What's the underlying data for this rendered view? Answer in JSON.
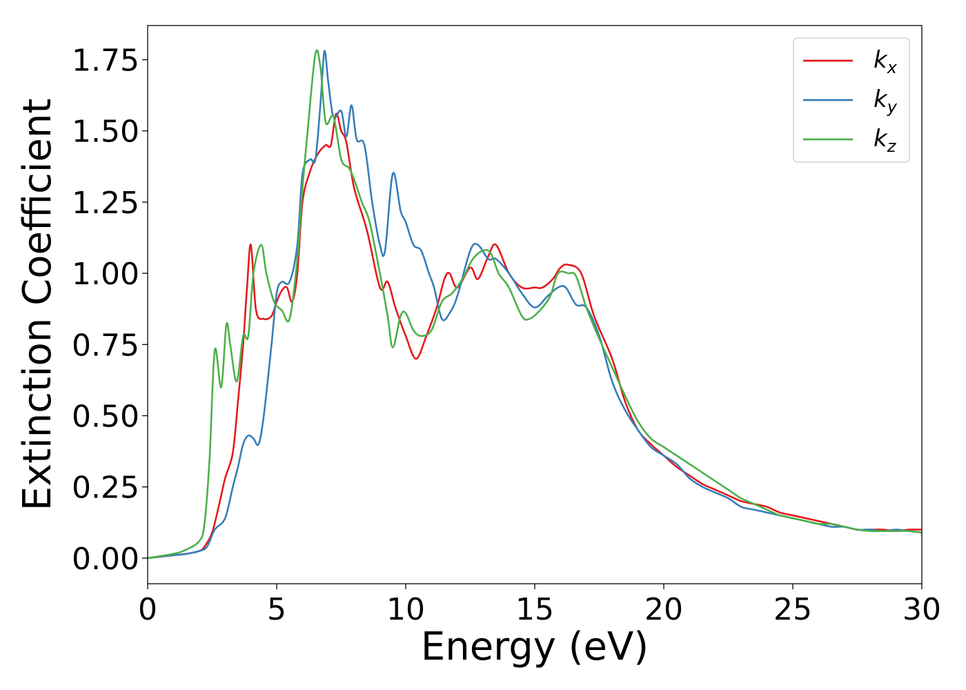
{
  "chart_data": {
    "type": "line",
    "title": "",
    "xlabel": "Energy (eV)",
    "ylabel": "Extinction Coefficient",
    "xlim": [
      0,
      30
    ],
    "ylim": [
      -0.09,
      1.87
    ],
    "xticks": [
      0,
      5,
      10,
      15,
      20,
      25,
      30
    ],
    "yticks": [
      0.0,
      0.25,
      0.5,
      0.75,
      1.0,
      1.25,
      1.5,
      1.75
    ],
    "xtick_labels": [
      "0",
      "5",
      "10",
      "15",
      "20",
      "25",
      "30"
    ],
    "ytick_labels": [
      "0.00",
      "0.25",
      "0.50",
      "0.75",
      "1.00",
      "1.25",
      "1.50",
      "1.75"
    ],
    "grid": false,
    "legend_position": "top-right",
    "series": [
      {
        "name": "k",
        "subscript": "x",
        "color": "#e41a1c",
        "x": [
          0,
          1,
          1.5,
          2,
          2.2,
          2.5,
          2.8,
          3,
          3.3,
          3.5,
          3.7,
          3.85,
          4,
          4.2,
          4.5,
          4.8,
          5,
          5.2,
          5.4,
          5.6,
          5.8,
          6,
          6.3,
          6.6,
          6.9,
          7.1,
          7.3,
          7.5,
          7.7,
          8,
          8.5,
          9,
          9.3,
          9.6,
          10,
          10.4,
          10.8,
          11.2,
          11.5,
          11.7,
          12,
          12.5,
          12.8,
          13.2,
          13.5,
          14,
          14.5,
          15,
          15.3,
          15.7,
          16,
          16.3,
          16.8,
          17.3,
          18,
          18.5,
          19,
          19.5,
          20,
          20.5,
          21,
          21.5,
          22,
          22.5,
          23,
          23.5,
          24,
          24.5,
          25,
          25.5,
          26,
          26.5,
          27,
          27.5,
          28,
          28.5,
          29,
          29.5,
          30
        ],
        "y": [
          0.0,
          0.01,
          0.015,
          0.025,
          0.04,
          0.09,
          0.2,
          0.28,
          0.37,
          0.55,
          0.75,
          0.95,
          1.1,
          0.87,
          0.84,
          0.85,
          0.9,
          0.94,
          0.95,
          0.9,
          1.0,
          1.25,
          1.36,
          1.42,
          1.45,
          1.45,
          1.56,
          1.5,
          1.46,
          1.3,
          1.15,
          0.95,
          0.97,
          0.88,
          0.78,
          0.7,
          0.78,
          0.88,
          0.98,
          1.0,
          0.95,
          1.02,
          0.98,
          1.06,
          1.1,
          1.0,
          0.95,
          0.95,
          0.95,
          0.98,
          1.02,
          1.03,
          1.0,
          0.85,
          0.7,
          0.55,
          0.45,
          0.4,
          0.36,
          0.32,
          0.29,
          0.26,
          0.24,
          0.22,
          0.2,
          0.19,
          0.18,
          0.16,
          0.15,
          0.14,
          0.13,
          0.12,
          0.11,
          0.1,
          0.1,
          0.1,
          0.095,
          0.1,
          0.1
        ]
      },
      {
        "name": "k",
        "subscript": "y",
        "color": "#377eb8",
        "x": [
          0,
          1,
          1.5,
          2,
          2.3,
          2.6,
          3,
          3.3,
          3.5,
          3.7,
          3.9,
          4.1,
          4.3,
          4.5,
          4.8,
          5,
          5.2,
          5.5,
          5.8,
          6,
          6.3,
          6.5,
          6.7,
          6.85,
          7,
          7.2,
          7.5,
          7.7,
          7.9,
          8.1,
          8.4,
          8.7,
          9,
          9.2,
          9.5,
          9.8,
          10,
          10.3,
          10.6,
          10.9,
          11.1,
          11.4,
          11.7,
          12,
          12.5,
          12.8,
          13.2,
          13.5,
          14,
          14.5,
          15,
          15.5,
          15.9,
          16.2,
          16.6,
          17,
          17.5,
          18,
          18.5,
          19,
          19.5,
          20,
          20.5,
          21,
          21.5,
          22,
          22.5,
          23,
          23.5,
          24,
          24.5,
          25,
          25.5,
          26,
          26.5,
          27,
          27.5,
          28,
          28.5,
          29,
          29.5,
          30
        ],
        "y": [
          0.0,
          0.01,
          0.015,
          0.025,
          0.04,
          0.1,
          0.14,
          0.25,
          0.32,
          0.4,
          0.43,
          0.42,
          0.4,
          0.5,
          0.75,
          0.93,
          0.97,
          0.97,
          1.1,
          1.35,
          1.4,
          1.4,
          1.6,
          1.78,
          1.67,
          1.55,
          1.57,
          1.48,
          1.59,
          1.47,
          1.45,
          1.25,
          1.1,
          1.08,
          1.35,
          1.22,
          1.18,
          1.1,
          1.08,
          1.0,
          0.95,
          0.84,
          0.86,
          0.92,
          1.08,
          1.1,
          1.05,
          1.05,
          1.0,
          0.93,
          0.88,
          0.92,
          0.95,
          0.95,
          0.89,
          0.88,
          0.78,
          0.62,
          0.52,
          0.45,
          0.39,
          0.36,
          0.33,
          0.28,
          0.25,
          0.23,
          0.21,
          0.18,
          0.17,
          0.16,
          0.15,
          0.14,
          0.13,
          0.12,
          0.11,
          0.11,
          0.1,
          0.1,
          0.095,
          0.1,
          0.095,
          0.09
        ]
      },
      {
        "name": "k",
        "subscript": "z",
        "color": "#4daf4a",
        "x": [
          0,
          1,
          1.5,
          2,
          2.2,
          2.4,
          2.6,
          2.85,
          3.05,
          3.2,
          3.45,
          3.7,
          3.9,
          4.1,
          4.4,
          4.6,
          4.9,
          5.2,
          5.5,
          5.8,
          6,
          6.2,
          6.5,
          6.7,
          6.9,
          7.2,
          7.5,
          7.8,
          8,
          8.3,
          8.6,
          9,
          9.3,
          9.5,
          9.8,
          10,
          10.3,
          10.6,
          11,
          11.4,
          11.8,
          12.2,
          12.6,
          13,
          13.3,
          13.6,
          14,
          14.5,
          14.8,
          15.2,
          15.6,
          15.9,
          16.3,
          16.6,
          17,
          17.5,
          18,
          18.5,
          19,
          19.5,
          20,
          20.5,
          21,
          21.5,
          22,
          22.5,
          23,
          23.5,
          24,
          24.5,
          25,
          25.5,
          26,
          26.5,
          27,
          27.5,
          28,
          28.5,
          29,
          29.5,
          30
        ],
        "y": [
          0.0,
          0.015,
          0.03,
          0.06,
          0.12,
          0.35,
          0.73,
          0.6,
          0.82,
          0.75,
          0.62,
          0.78,
          0.78,
          1.0,
          1.1,
          1.0,
          0.9,
          0.87,
          0.84,
          1.05,
          1.3,
          1.5,
          1.77,
          1.72,
          1.53,
          1.55,
          1.4,
          1.37,
          1.33,
          1.25,
          1.18,
          1.0,
          0.85,
          0.74,
          0.85,
          0.86,
          0.8,
          0.78,
          0.8,
          0.9,
          0.93,
          0.98,
          1.05,
          1.08,
          1.07,
          1.0,
          0.95,
          0.85,
          0.84,
          0.87,
          0.92,
          1.0,
          1.0,
          0.99,
          0.88,
          0.77,
          0.67,
          0.57,
          0.48,
          0.42,
          0.39,
          0.36,
          0.33,
          0.3,
          0.27,
          0.24,
          0.21,
          0.19,
          0.17,
          0.15,
          0.14,
          0.13,
          0.12,
          0.12,
          0.11,
          0.1,
          0.095,
          0.095,
          0.095,
          0.095,
          0.09
        ]
      }
    ]
  }
}
